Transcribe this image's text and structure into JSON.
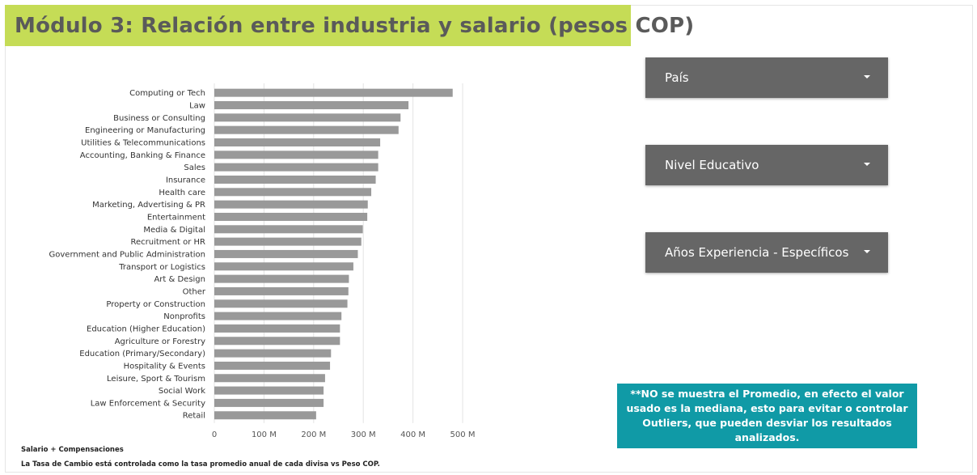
{
  "header": {
    "title": "Módulo 3: Relación entre industria y salario (pesos COP)"
  },
  "filters": [
    {
      "label": "País"
    },
    {
      "label": "Nivel Educativo"
    },
    {
      "label": "Años Experiencia - Específicos"
    }
  ],
  "note": "**NO se muestra el Promedio, en efecto el valor usado es la mediana, esto para evitar o controlar Outliers, que pueden desviar los resultados analizados.",
  "footer": {
    "line1": "Salario + Compensaciones",
    "line2": "La Tasa de Cambio está controlada como la tasa promedio anual de cada divisa vs Peso COP."
  },
  "colors": {
    "banner": "#c5dc56",
    "bar": "#999999",
    "filter": "#666666",
    "note": "#109aa6"
  },
  "icons": {
    "dropdown": "caret-down-icon"
  },
  "chart_data": {
    "type": "bar",
    "orientation": "horizontal",
    "categories": [
      "Computing or Tech",
      "Law",
      "Business or Consulting",
      "Engineering or Manufacturing",
      "Utilities & Telecommunications",
      "Accounting, Banking & Finance",
      "Sales",
      "Insurance",
      "Health care",
      "Marketing, Advertising & PR",
      "Entertainment",
      "Media & Digital",
      "Recruitment or HR",
      "Government and Public Administration",
      "Transport or Logistics",
      "Art & Design",
      "Other",
      "Property or Construction",
      "Nonprofits",
      "Education (Higher Education)",
      "Agriculture or Forestry",
      "Education (Primary/Secondary)",
      "Hospitality & Events",
      "Leisure, Sport & Tourism",
      "Social Work",
      "Law Enforcement & Security",
      "Retail"
    ],
    "values": [
      480,
      391,
      375,
      371,
      334,
      330,
      330,
      325,
      316,
      309,
      308,
      299,
      296,
      289,
      280,
      271,
      270,
      268,
      256,
      253,
      253,
      235,
      233,
      223,
      220,
      220,
      205
    ],
    "value_unit": "M",
    "xlim": [
      0,
      500
    ],
    "xticks": [
      "0",
      "100 M",
      "200 M",
      "300 M",
      "400 M",
      "500 M"
    ],
    "grid": true,
    "title": "",
    "xlabel": "",
    "ylabel": ""
  }
}
